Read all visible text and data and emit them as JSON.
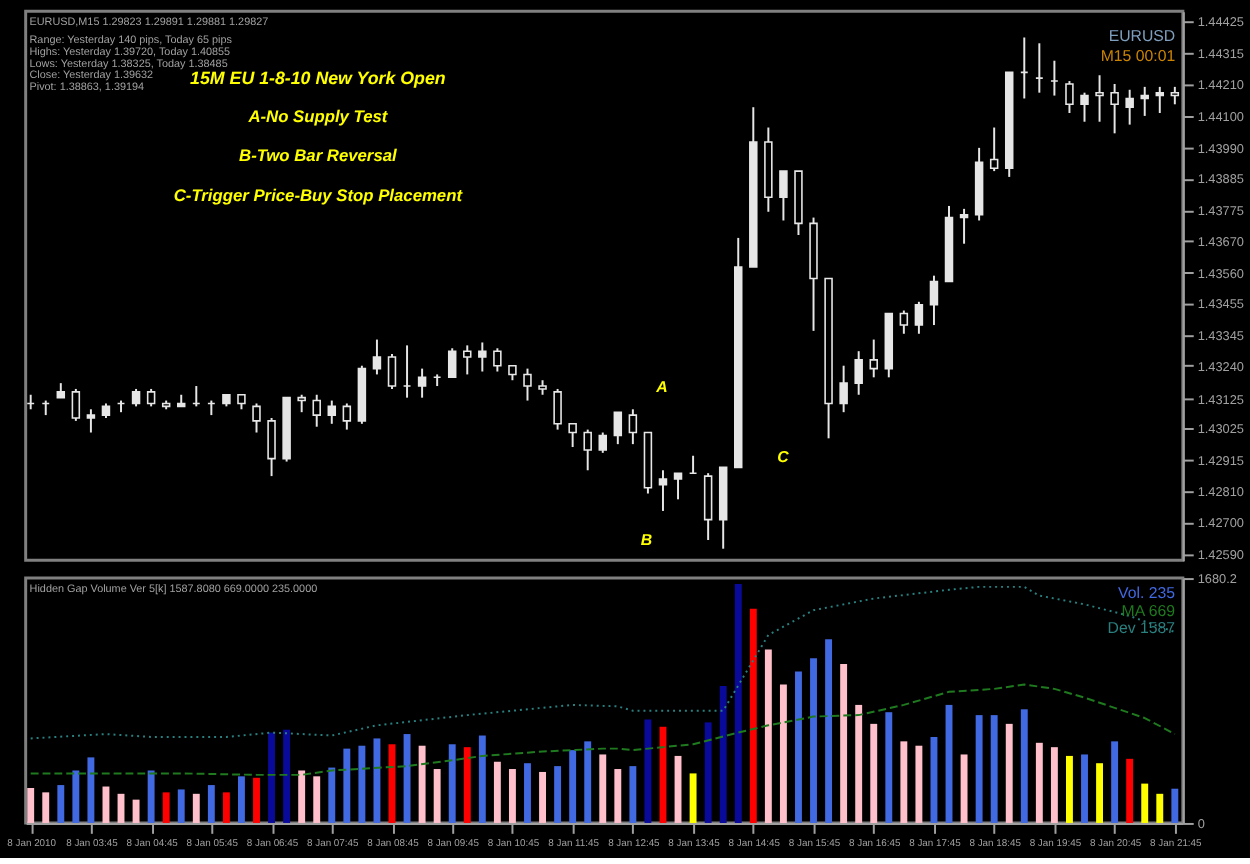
{
  "chart_data": [
    {
      "type": "candlestick",
      "title": "15M EU 1-8-10 New York Open",
      "color": "#e6e6e6",
      "x": [
        "2010-01-08T02:45",
        "2010-01-08T03:00",
        "2010-01-08T03:15",
        "2010-01-08T03:30",
        "2010-01-08T03:45",
        "2010-01-08T04:00",
        "2010-01-08T04:15",
        "2010-01-08T04:30",
        "2010-01-08T04:45",
        "2010-01-08T05:00",
        "2010-01-08T05:15",
        "2010-01-08T05:30",
        "2010-01-08T05:45",
        "2010-01-08T06:00",
        "2010-01-08T06:15",
        "2010-01-08T06:30",
        "2010-01-08T06:45",
        "2010-01-08T07:00",
        "2010-01-08T07:15",
        "2010-01-08T07:30",
        "2010-01-08T07:45",
        "2010-01-08T08:00",
        "2010-01-08T08:15",
        "2010-01-08T08:30",
        "2010-01-08T08:45",
        "2010-01-08T09:00",
        "2010-01-08T09:15",
        "2010-01-08T09:30",
        "2010-01-08T09:45",
        "2010-01-08T10:00",
        "2010-01-08T10:15",
        "2010-01-08T10:30",
        "2010-01-08T10:45",
        "2010-01-08T11:00",
        "2010-01-08T11:15",
        "2010-01-08T11:30",
        "2010-01-08T11:45",
        "2010-01-08T12:00",
        "2010-01-08T12:15",
        "2010-01-08T12:30",
        "2010-01-08T12:45",
        "2010-01-08T13:00",
        "2010-01-08T13:15",
        "2010-01-08T13:30",
        "2010-01-08T13:45",
        "2010-01-08T14:00",
        "2010-01-08T14:15",
        "2010-01-08T14:30",
        "2010-01-08T14:45",
        "2010-01-08T15:00",
        "2010-01-08T15:15",
        "2010-01-08T15:30",
        "2010-01-08T15:45",
        "2010-01-08T16:00",
        "2010-01-08T16:15",
        "2010-01-08T16:30",
        "2010-01-08T16:45",
        "2010-01-08T17:00",
        "2010-01-08T17:15",
        "2010-01-08T17:30",
        "2010-01-08T17:45",
        "2010-01-08T18:00",
        "2010-01-08T18:15",
        "2010-01-08T18:30",
        "2010-01-08T18:45",
        "2010-01-08T19:00",
        "2010-01-08T19:15",
        "2010-01-08T19:30",
        "2010-01-08T19:45",
        "2010-01-08T20:00",
        "2010-01-08T20:15",
        "2010-01-08T20:30",
        "2010-01-08T20:45",
        "2010-01-08T21:00",
        "2010-01-08T21:15",
        "2010-01-08T21:30",
        "2010-01-08T21:45"
      ],
      "ohlc": [
        [
          1.4311,
          1.4314,
          1.4309,
          1.4311
        ],
        [
          1.4311,
          1.4312,
          1.4307,
          1.4311
        ],
        [
          1.4313,
          1.4318,
          1.4313,
          1.4315
        ],
        [
          1.4315,
          1.4316,
          1.4305,
          1.4306
        ],
        [
          1.4306,
          1.4309,
          1.4301,
          1.4307
        ],
        [
          1.4307,
          1.4311,
          1.4306,
          1.431
        ],
        [
          1.4311,
          1.4312,
          1.4308,
          1.4311
        ],
        [
          1.4311,
          1.4316,
          1.431,
          1.4315
        ],
        [
          1.4315,
          1.4316,
          1.431,
          1.4311
        ],
        [
          1.4311,
          1.4312,
          1.4309,
          1.431
        ],
        [
          1.431,
          1.4314,
          1.431,
          1.4311
        ],
        [
          1.4311,
          1.4317,
          1.431,
          1.4311
        ],
        [
          1.4311,
          1.4312,
          1.4307,
          1.4311
        ],
        [
          1.4311,
          1.4314,
          1.431,
          1.4314
        ],
        [
          1.4314,
          1.4314,
          1.4309,
          1.4311
        ],
        [
          1.431,
          1.4311,
          1.4301,
          1.4305
        ],
        [
          1.4305,
          1.4306,
          1.4286,
          1.4292
        ],
        [
          1.4292,
          1.4313,
          1.4291,
          1.4313
        ],
        [
          1.4313,
          1.4314,
          1.4308,
          1.4312
        ],
        [
          1.4312,
          1.4314,
          1.4303,
          1.4307
        ],
        [
          1.4307,
          1.4312,
          1.4304,
          1.431
        ],
        [
          1.431,
          1.4311,
          1.4302,
          1.4305
        ],
        [
          1.4305,
          1.4324,
          1.4304,
          1.4323
        ],
        [
          1.4323,
          1.4333,
          1.4321,
          1.4327
        ],
        [
          1.4327,
          1.4328,
          1.4316,
          1.4317
        ],
        [
          1.4317,
          1.4331,
          1.4313,
          1.4317
        ],
        [
          1.4317,
          1.4323,
          1.4313,
          1.432
        ],
        [
          1.432,
          1.4321,
          1.4317,
          1.432
        ],
        [
          1.432,
          1.433,
          1.432,
          1.4329
        ],
        [
          1.4329,
          1.4331,
          1.4321,
          1.4327
        ],
        [
          1.4327,
          1.4332,
          1.4322,
          1.4329
        ],
        [
          1.4329,
          1.433,
          1.4322,
          1.4324
        ],
        [
          1.4324,
          1.4324,
          1.4319,
          1.4321
        ],
        [
          1.4321,
          1.4323,
          1.4312,
          1.4317
        ],
        [
          1.4317,
          1.4319,
          1.4314,
          1.4316
        ],
        [
          1.4315,
          1.4316,
          1.4302,
          1.4304
        ],
        [
          1.4304,
          1.4304,
          1.4296,
          1.4301
        ],
        [
          1.4301,
          1.4302,
          1.4288,
          1.4295
        ],
        [
          1.4295,
          1.4301,
          1.4294,
          1.43
        ],
        [
          1.43,
          1.4308,
          1.4297,
          1.4308
        ],
        [
          1.4307,
          1.4309,
          1.4297,
          1.4301
        ],
        [
          1.4301,
          1.4301,
          1.428,
          1.4282
        ],
        [
          1.4283,
          1.4288,
          1.4274,
          1.4285
        ],
        [
          1.4285,
          1.4287,
          1.4278,
          1.4287
        ],
        [
          1.4287,
          1.4293,
          1.4287,
          1.4287
        ],
        [
          1.4286,
          1.4287,
          1.4264,
          1.4271
        ],
        [
          1.4271,
          1.4289,
          1.4261,
          1.4289
        ],
        [
          1.4289,
          1.4368,
          1.4289,
          1.4358
        ],
        [
          1.4358,
          1.4413,
          1.4358,
          1.4401
        ],
        [
          1.4401,
          1.4406,
          1.4377,
          1.4382
        ],
        [
          1.4382,
          1.4391,
          1.4374,
          1.4391
        ],
        [
          1.4391,
          1.4391,
          1.4369,
          1.4373
        ],
        [
          1.4373,
          1.4375,
          1.4336,
          1.4354
        ],
        [
          1.4354,
          1.4354,
          1.4299,
          1.4311
        ],
        [
          1.4311,
          1.4324,
          1.4308,
          1.4318
        ],
        [
          1.4318,
          1.4329,
          1.4314,
          1.4326
        ],
        [
          1.4326,
          1.4333,
          1.432,
          1.4323
        ],
        [
          1.4323,
          1.4342,
          1.432,
          1.4342
        ],
        [
          1.4342,
          1.4343,
          1.4335,
          1.4338
        ],
        [
          1.4338,
          1.4346,
          1.4335,
          1.4345
        ],
        [
          1.4345,
          1.4355,
          1.4338,
          1.4353
        ],
        [
          1.4353,
          1.4379,
          1.4353,
          1.4375
        ],
        [
          1.4375,
          1.4378,
          1.4366,
          1.4376
        ],
        [
          1.4376,
          1.4399,
          1.4374,
          1.4394
        ],
        [
          1.4395,
          1.4406,
          1.4391,
          1.4392
        ],
        [
          1.4392,
          1.4425,
          1.4389,
          1.4425
        ],
        [
          1.4425,
          1.4437,
          1.4416,
          1.4425
        ],
        [
          1.4423,
          1.4435,
          1.4418,
          1.4423
        ],
        [
          1.4422,
          1.4429,
          1.4417,
          1.4422
        ],
        [
          1.4421,
          1.4422,
          1.4411,
          1.4414
        ],
        [
          1.4414,
          1.4418,
          1.4408,
          1.4417
        ],
        [
          1.4418,
          1.4424,
          1.4408,
          1.4417
        ],
        [
          1.4418,
          1.4421,
          1.4404,
          1.4414
        ],
        [
          1.4413,
          1.4419,
          1.4407,
          1.4416
        ],
        [
          1.4416,
          1.442,
          1.441,
          1.4417
        ],
        [
          1.4417,
          1.442,
          1.4411,
          1.4418
        ],
        [
          1.4418,
          1.442,
          1.4414,
          1.4417
        ]
      ],
      "xlim": [
        "2010-01-08T02:40",
        "2010-01-08T21:53"
      ],
      "ylim": [
        1.4257,
        1.4446
      ],
      "yticks": [
        {
          "value": 1.44425,
          "label": "1.44425"
        },
        {
          "value": 1.44315,
          "label": "1.44315"
        },
        {
          "value": 1.4421,
          "label": "1.44210"
        },
        {
          "value": 1.441,
          "label": "1.44100"
        },
        {
          "value": 1.4399,
          "label": "1.43990"
        },
        {
          "value": 1.43885,
          "label": "1.43885"
        },
        {
          "value": 1.43775,
          "label": "1.43775"
        },
        {
          "value": 1.4367,
          "label": "1.43670"
        },
        {
          "value": 1.4356,
          "label": "1.43560"
        },
        {
          "value": 1.43455,
          "label": "1.43455"
        },
        {
          "value": 1.43345,
          "label": "1.43345"
        },
        {
          "value": 1.4324,
          "label": "1.43240"
        },
        {
          "value": 1.43125,
          "label": "1.43125"
        },
        {
          "value": 1.43025,
          "label": "1.43025"
        },
        {
          "value": 1.42915,
          "label": "1.42915"
        },
        {
          "value": 1.4281,
          "label": "1.42810"
        },
        {
          "value": 1.427,
          "label": "1.42700"
        },
        {
          "value": 1.4259,
          "label": "1.42590"
        }
      ],
      "tick_labels": "y",
      "grid": false,
      "annotations": [
        "EURUSD,M15 1.29823 1.29891 1.29881 1.29827",
        "Range: Yesterday 140 pips, Today 65 pips",
        "Highs: Yesterday 1.39720, Today 1.40855",
        "Lows: Yesterday 1.38325, Today 1.38485",
        "Close: Yesterday 1.39632",
        "Pivot: 1.38863, 1.39194",
        "A-No Supply Test",
        "B-Two Bar Reversal",
        "C-Trigger Price-Buy Stop Placement",
        "EURUSD",
        "M15 00:01",
        "A",
        "B",
        "C"
      ]
    },
    {
      "type": "bar",
      "title": "Hidden Gap Volume Ver 5[k] 1587.8080 669.0000 235.0000",
      "x": [
        "2010-01-08T02:45",
        "2010-01-08T03:00",
        "2010-01-08T03:15",
        "2010-01-08T03:30",
        "2010-01-08T03:45",
        "2010-01-08T04:00",
        "2010-01-08T04:15",
        "2010-01-08T04:30",
        "2010-01-08T04:45",
        "2010-01-08T05:00",
        "2010-01-08T05:15",
        "2010-01-08T05:30",
        "2010-01-08T05:45",
        "2010-01-08T06:00",
        "2010-01-08T06:15",
        "2010-01-08T06:30",
        "2010-01-08T06:45",
        "2010-01-08T07:00",
        "2010-01-08T07:15",
        "2010-01-08T07:30",
        "2010-01-08T07:45",
        "2010-01-08T08:00",
        "2010-01-08T08:15",
        "2010-01-08T08:30",
        "2010-01-08T08:45",
        "2010-01-08T09:00",
        "2010-01-08T09:15",
        "2010-01-08T09:30",
        "2010-01-08T09:45",
        "2010-01-08T10:00",
        "2010-01-08T10:15",
        "2010-01-08T10:30",
        "2010-01-08T10:45",
        "2010-01-08T11:00",
        "2010-01-08T11:15",
        "2010-01-08T11:30",
        "2010-01-08T11:45",
        "2010-01-08T12:00",
        "2010-01-08T12:15",
        "2010-01-08T12:30",
        "2010-01-08T12:45",
        "2010-01-08T13:00",
        "2010-01-08T13:15",
        "2010-01-08T13:30",
        "2010-01-08T13:45",
        "2010-01-08T14:00",
        "2010-01-08T14:15",
        "2010-01-08T14:30",
        "2010-01-08T14:45",
        "2010-01-08T15:00",
        "2010-01-08T15:15",
        "2010-01-08T15:30",
        "2010-01-08T15:45",
        "2010-01-08T16:00",
        "2010-01-08T16:15",
        "2010-01-08T16:30",
        "2010-01-08T16:45",
        "2010-01-08T17:00",
        "2010-01-08T17:15",
        "2010-01-08T17:30",
        "2010-01-08T17:45",
        "2010-01-08T18:00",
        "2010-01-08T18:15",
        "2010-01-08T18:30",
        "2010-01-08T18:45",
        "2010-01-08T19:00",
        "2010-01-08T19:15",
        "2010-01-08T19:30",
        "2010-01-08T19:45",
        "2010-01-08T20:00",
        "2010-01-08T20:15",
        "2010-01-08T20:30",
        "2010-01-08T20:45",
        "2010-01-08T21:00",
        "2010-01-08T21:15",
        "2010-01-08T21:30",
        "2010-01-08T21:45"
      ],
      "series": [
        {
          "name": "Vol. 235",
          "type": "bar",
          "color": "#4169e1",
          "values": [
            240,
            210,
            260,
            360,
            450,
            250,
            200,
            160,
            360,
            210,
            230,
            200,
            260,
            210,
            320,
            310,
            620,
            640,
            360,
            320,
            380,
            510,
            530,
            580,
            540,
            610,
            530,
            370,
            540,
            520,
            600,
            420,
            370,
            410,
            350,
            390,
            500,
            560,
            470,
            370,
            390,
            710,
            660,
            460,
            340,
            690,
            940,
            1640,
            1470,
            1190,
            950,
            1040,
            1130,
            1260,
            1090,
            810,
            680,
            760,
            560,
            530,
            590,
            810,
            470,
            740,
            740,
            680,
            780,
            550,
            520,
            460,
            470,
            410,
            560,
            440,
            270,
            200,
            235
          ],
          "colors": [
            "#ffc0cb",
            "#ffc0cb",
            "#4169e1",
            "#4169e1",
            "#4169e1",
            "#ffc0cb",
            "#ffc0cb",
            "#ffc0cb",
            "#4169e1",
            "#ff0000",
            "#4169e1",
            "#ffc0cb",
            "#4169e1",
            "#ff0000",
            "#4169e1",
            "#ff0000",
            "#0a0a9a",
            "#0a0a9a",
            "#ffc0cb",
            "#ffc0cb",
            "#4169e1",
            "#4169e1",
            "#4169e1",
            "#4169e1",
            "#ff0000",
            "#4169e1",
            "#ffc0cb",
            "#ffc0cb",
            "#4169e1",
            "#ff0000",
            "#4169e1",
            "#ffc0cb",
            "#ffc0cb",
            "#4169e1",
            "#ffc0cb",
            "#4169e1",
            "#4169e1",
            "#4169e1",
            "#ffc0cb",
            "#ffc0cb",
            "#4169e1",
            "#0a0a9a",
            "#ff0000",
            "#ffc0cb",
            "#ffff00",
            "#0a0a9a",
            "#0a0a9a",
            "#0a0a9a",
            "#ff0000",
            "#ffc0cb",
            "#ffc0cb",
            "#4169e1",
            "#4169e1",
            "#4169e1",
            "#ffc0cb",
            "#ffc0cb",
            "#ffc0cb",
            "#4169e1",
            "#ffc0cb",
            "#ffc0cb",
            "#4169e1",
            "#4169e1",
            "#ffc0cb",
            "#4169e1",
            "#4169e1",
            "#ffc0cb",
            "#4169e1",
            "#ffc0cb",
            "#ffc0cb",
            "#ffff00",
            "#4169e1",
            "#ffff00",
            "#4169e1",
            "#ff0000",
            "#ffff00",
            "#ffff00",
            "#4169e1"
          ]
        },
        {
          "name": "MA 669",
          "type": "line",
          "color": "#1f7a1f",
          "line_style": "dashed",
          "x": [
            "2010-01-08T02:45",
            "2010-01-08T04:00",
            "2010-01-08T05:15",
            "2010-01-08T06:30",
            "2010-01-08T07:15",
            "2010-01-08T07:45",
            "2010-01-08T09:00",
            "2010-01-08T09:45",
            "2010-01-08T10:15",
            "2010-01-08T11:15",
            "2010-01-08T12:15",
            "2010-01-08T12:30",
            "2010-01-08T12:45",
            "2010-01-08T13:45",
            "2010-01-08T14:30",
            "2010-01-08T15:00",
            "2010-01-08T15:45",
            "2010-01-08T16:30",
            "2010-01-08T17:15",
            "2010-01-08T18:00",
            "2010-01-08T18:45",
            "2010-01-08T19:15",
            "2010-01-08T19:45",
            "2010-01-08T20:15",
            "2010-01-08T20:45",
            "2010-01-08T21:15",
            "2010-01-08T21:45"
          ],
          "values": [
            340,
            340,
            340,
            330,
            330,
            360,
            390,
            430,
            460,
            490,
            510,
            510,
            500,
            540,
            620,
            670,
            730,
            740,
            810,
            900,
            920,
            950,
            920,
            860,
            790,
            720,
            610
          ]
        },
        {
          "name": "Dev 1587",
          "type": "line",
          "color": "#2a7f7f",
          "line_style": "dotted",
          "x": [
            "2010-01-08T02:45",
            "2010-01-08T04:00",
            "2010-01-08T04:45",
            "2010-01-08T06:00",
            "2010-01-08T06:45",
            "2010-01-08T07:45",
            "2010-01-08T08:30",
            "2010-01-08T10:00",
            "2010-01-08T11:00",
            "2010-01-08T11:45",
            "2010-01-08T12:30",
            "2010-01-08T12:45",
            "2010-01-08T14:15",
            "2010-01-08T15:00",
            "2010-01-08T15:45",
            "2010-01-08T16:45",
            "2010-01-08T18:00",
            "2010-01-08T18:30",
            "2010-01-08T19:15",
            "2010-01-08T19:30",
            "2010-01-08T20:15",
            "2010-01-08T21:00",
            "2010-01-08T21:45"
          ],
          "values": [
            580,
            610,
            590,
            590,
            620,
            600,
            670,
            740,
            780,
            810,
            800,
            770,
            770,
            1290,
            1460,
            1540,
            1600,
            1620,
            1620,
            1560,
            1500,
            1420,
            1310
          ]
        }
      ],
      "xlim": [
        "2010-01-08T02:40",
        "2010-01-08T21:53"
      ],
      "ylim": [
        0,
        1680.2
      ],
      "yticks": [
        0,
        1680.2
      ],
      "xticks": [
        {
          "value": "2010-01-08T02:45",
          "label": "8 Jan 2010"
        },
        {
          "value": "2010-01-08T03:45",
          "label": "8 Jan 03:45"
        },
        {
          "value": "2010-01-08T04:45",
          "label": "8 Jan 04:45"
        },
        {
          "value": "2010-01-08T05:45",
          "label": "8 Jan 05:45"
        },
        {
          "value": "2010-01-08T06:45",
          "label": "8 Jan 06:45"
        },
        {
          "value": "2010-01-08T07:45",
          "label": "8 Jan 07:45"
        },
        {
          "value": "2010-01-08T08:45",
          "label": "8 Jan 08:45"
        },
        {
          "value": "2010-01-08T09:45",
          "label": "8 Jan 09:45"
        },
        {
          "value": "2010-01-08T10:45",
          "label": "8 Jan 10:45"
        },
        {
          "value": "2010-01-08T11:45",
          "label": "8 Jan 11:45"
        },
        {
          "value": "2010-01-08T12:45",
          "label": "8 Jan 12:45"
        },
        {
          "value": "2010-01-08T13:45",
          "label": "8 Jan 13:45"
        },
        {
          "value": "2010-01-08T14:45",
          "label": "8 Jan 14:45"
        },
        {
          "value": "2010-01-08T15:45",
          "label": "8 Jan 15:45"
        },
        {
          "value": "2010-01-08T16:45",
          "label": "8 Jan 16:45"
        },
        {
          "value": "2010-01-08T17:45",
          "label": "8 Jan 17:45"
        },
        {
          "value": "2010-01-08T18:45",
          "label": "8 Jan 18:45"
        },
        {
          "value": "2010-01-08T19:45",
          "label": "8 Jan 19:45"
        },
        {
          "value": "2010-01-08T20:45",
          "label": "8 Jan 20:45"
        },
        {
          "value": "2010-01-08T21:45",
          "label": "8 Jan 21:45"
        }
      ],
      "grid": false,
      "legend": "top right"
    }
  ]
}
